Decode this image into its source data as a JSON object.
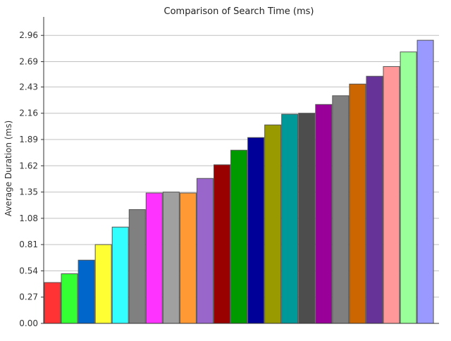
{
  "chart_data": {
    "type": "bar",
    "title": "Comparison of Search Time (ms)",
    "xlabel": "",
    "ylabel": "Average Duration (ms)",
    "ylim": [
      0,
      3.15
    ],
    "yticks": [
      "0.00",
      "0.27",
      "0.54",
      "0.81",
      "1.08",
      "1.35",
      "1.62",
      "1.89",
      "2.16",
      "2.43",
      "2.69",
      "2.96"
    ],
    "grid": true,
    "legend": "none",
    "categories": [
      "",
      "",
      "",
      "",
      "",
      "",
      "",
      "",
      "",
      "",
      "",
      "",
      "",
      "",
      "",
      "",
      "",
      "",
      "",
      "",
      "",
      "",
      ""
    ],
    "values": [
      0.42,
      0.51,
      0.65,
      0.81,
      0.99,
      1.17,
      1.34,
      1.35,
      1.34,
      1.49,
      1.63,
      1.78,
      1.91,
      2.04,
      2.15,
      2.16,
      2.25,
      2.34,
      2.46,
      2.54,
      2.64,
      2.79,
      2.91
    ],
    "colors": [
      "#ff3333",
      "#33ff33",
      "#0066cc",
      "#ffff33",
      "#33ffff",
      "#808080",
      "#ff33ff",
      "#a0a0a0",
      "#ff9933",
      "#9966cc",
      "#990000",
      "#009900",
      "#000099",
      "#999900",
      "#009999",
      "#4d4d4d",
      "#990099",
      "#7f7f7f",
      "#cc6600",
      "#663399",
      "#ff9999",
      "#99ff99",
      "#9999ff"
    ]
  }
}
